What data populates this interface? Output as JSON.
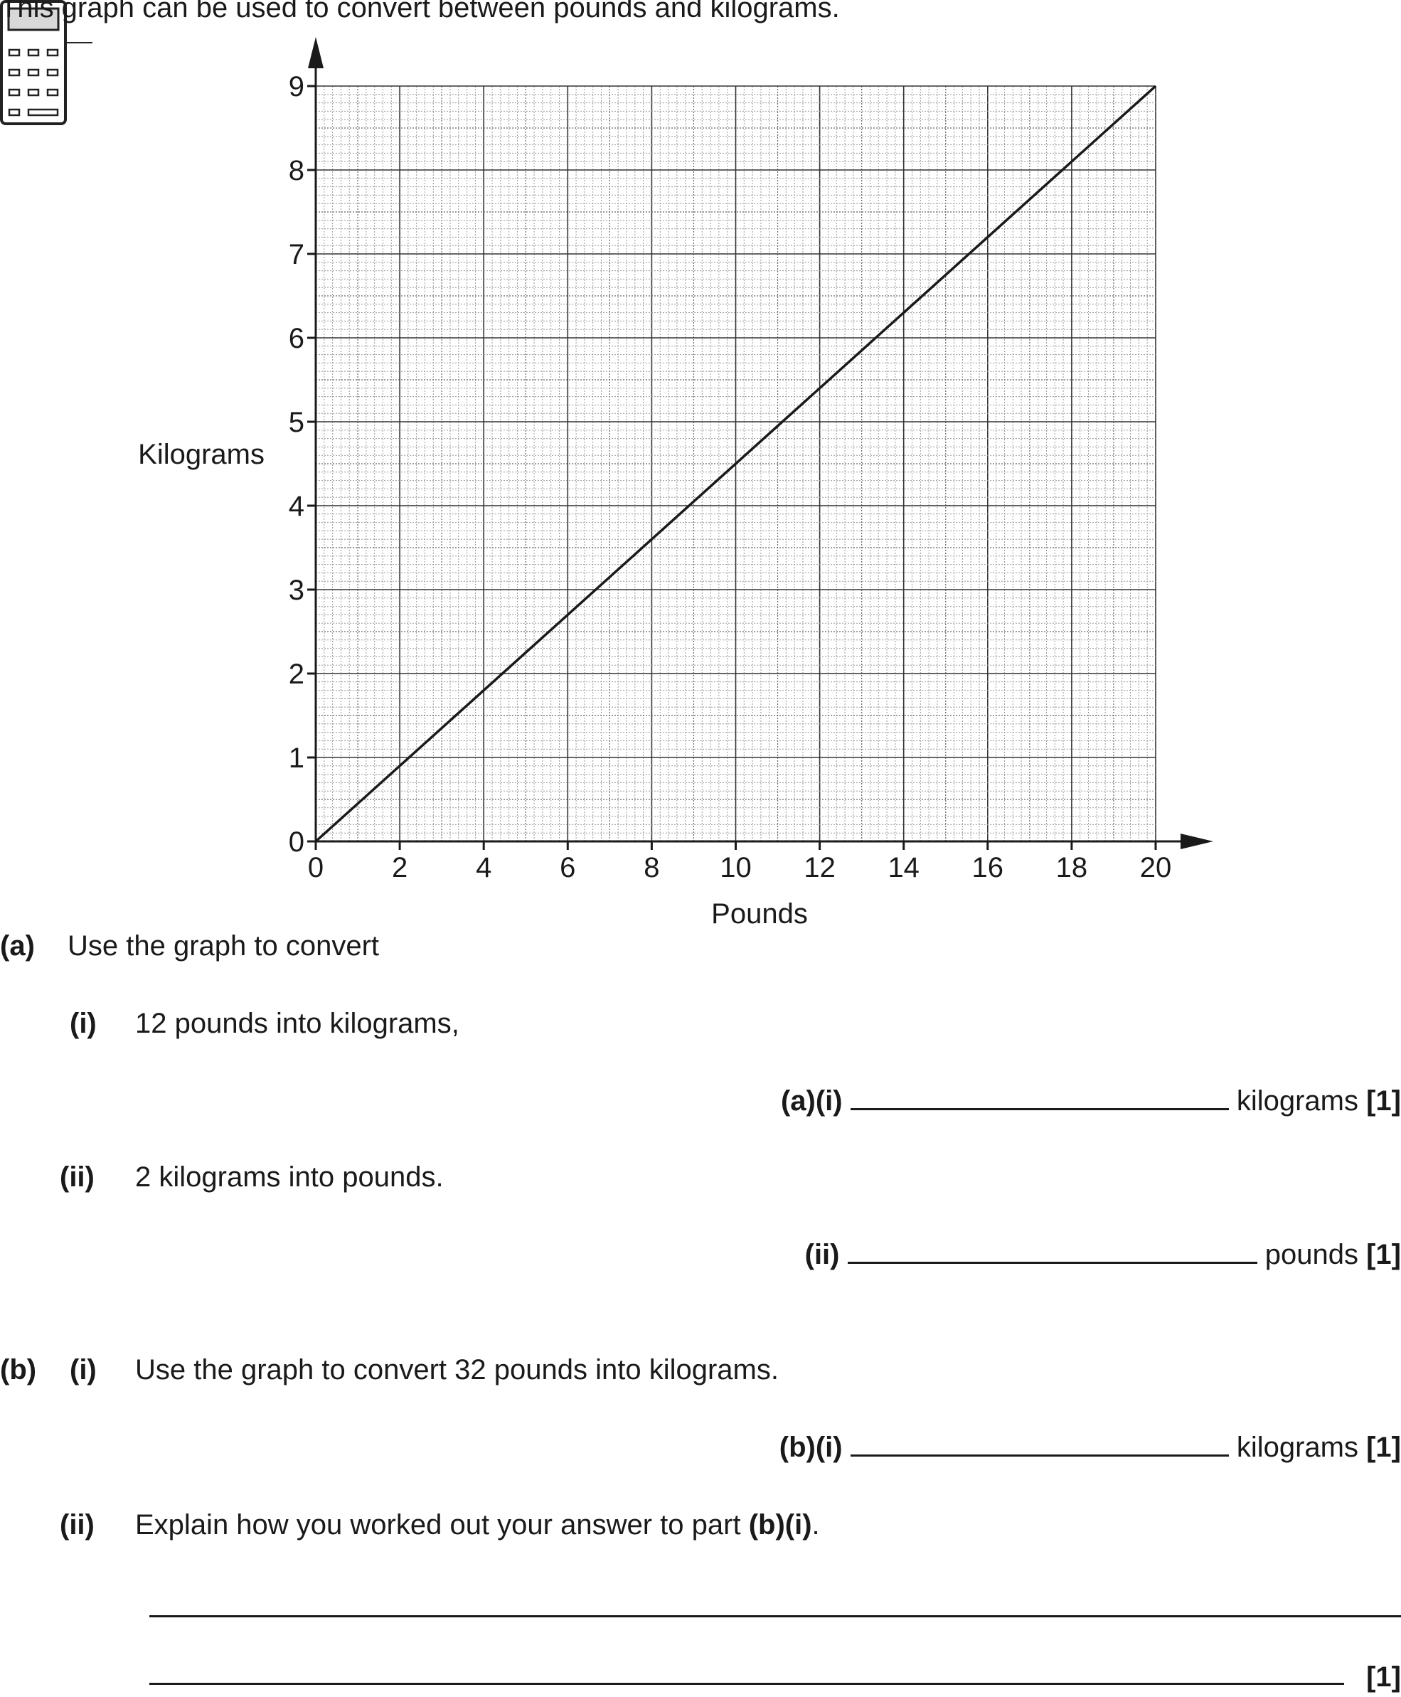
{
  "intro": "This graph can be used to convert between pounds and kilograms.",
  "calculator_icon": "calculator-icon",
  "chart_data": {
    "type": "line",
    "xlabel": "Pounds",
    "ylabel": "Kilograms",
    "xlim": [
      0,
      20
    ],
    "ylim": [
      0,
      9
    ],
    "x_ticks": [
      "0",
      "2",
      "4",
      "6",
      "8",
      "10",
      "12",
      "14",
      "16",
      "18",
      "20"
    ],
    "y_ticks": [
      "0",
      "1",
      "2",
      "3",
      "4",
      "5",
      "6",
      "7",
      "8",
      "9"
    ],
    "grid": true,
    "series": [
      {
        "x": [
          0,
          20
        ],
        "y": [
          0,
          9
        ]
      }
    ]
  },
  "questions": {
    "a_label": "(a)",
    "a_text": "Use the graph to convert",
    "a_i_label": "(i)",
    "a_i_text": "12 pounds into kilograms,",
    "a_i_answer_label": "(a)(i)",
    "a_i_unit": "kilograms",
    "a_i_marks": "[1]",
    "a_ii_label": "(ii)",
    "a_ii_text": "2 kilograms into pounds.",
    "a_ii_answer_label": "(ii)",
    "a_ii_unit": "pounds",
    "a_ii_marks": "[1]",
    "b_label": "(b)",
    "b_i_label": "(i)",
    "b_i_text": "Use the graph to convert 32 pounds into kilograms.",
    "b_i_answer_label": "(b)(i)",
    "b_i_unit": "kilograms",
    "b_i_marks": "[1]",
    "b_ii_label": "(ii)",
    "b_ii_text_pre": "Explain how you worked out your answer to part ",
    "b_ii_text_ref": "(b)(i)",
    "b_ii_text_post": ".",
    "b_ii_marks": "[1]"
  }
}
